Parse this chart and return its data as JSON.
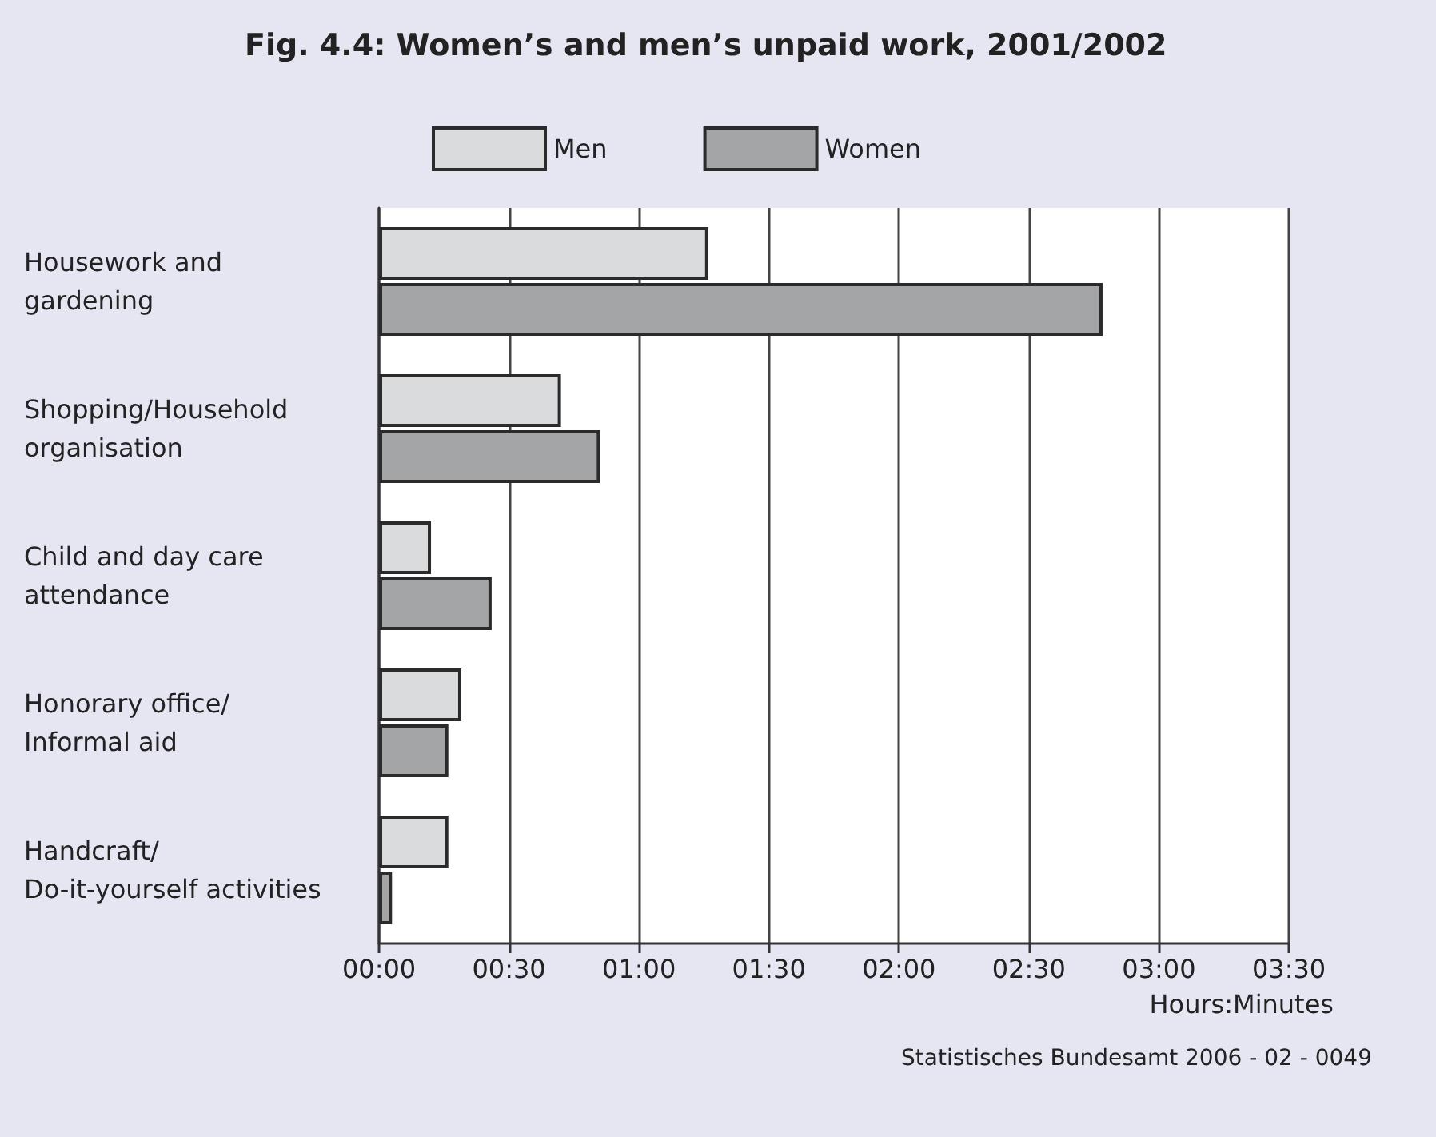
{
  "chart_data": {
    "type": "bar",
    "orientation": "horizontal",
    "title": "Fig. 4.4: Women’s and men’s unpaid work, 2001/2002",
    "categories": [
      "Housework and\ngardening",
      "Shopping/Household\norganisation",
      "Child and day care\nattendance",
      "Honorary office/\nInformal aid",
      "Handcraft/\nDo-it-yourself activities"
    ],
    "series": [
      {
        "name": "Men",
        "color": "#d9dbdc",
        "values": [
          76,
          42,
          12,
          19,
          16
        ]
      },
      {
        "name": "Women",
        "color": "#a4a5a7",
        "values": [
          167,
          51,
          26,
          16,
          3
        ]
      }
    ],
    "xlabel": "Hours:Minutes",
    "xlim": [
      0,
      210
    ],
    "xticks": [
      {
        "value": 0,
        "label": "00:00"
      },
      {
        "value": 30,
        "label": "00:30"
      },
      {
        "value": 60,
        "label": "01:00"
      },
      {
        "value": 90,
        "label": "01:30"
      },
      {
        "value": 120,
        "label": "02:00"
      },
      {
        "value": 150,
        "label": "02:30"
      },
      {
        "value": 180,
        "label": "03:00"
      },
      {
        "value": 210,
        "label": "03:30"
      }
    ],
    "grid": "x",
    "legend": "top",
    "annotations": [
      "Statistisches Bundesamt 2006 - 02 - 0049"
    ]
  }
}
